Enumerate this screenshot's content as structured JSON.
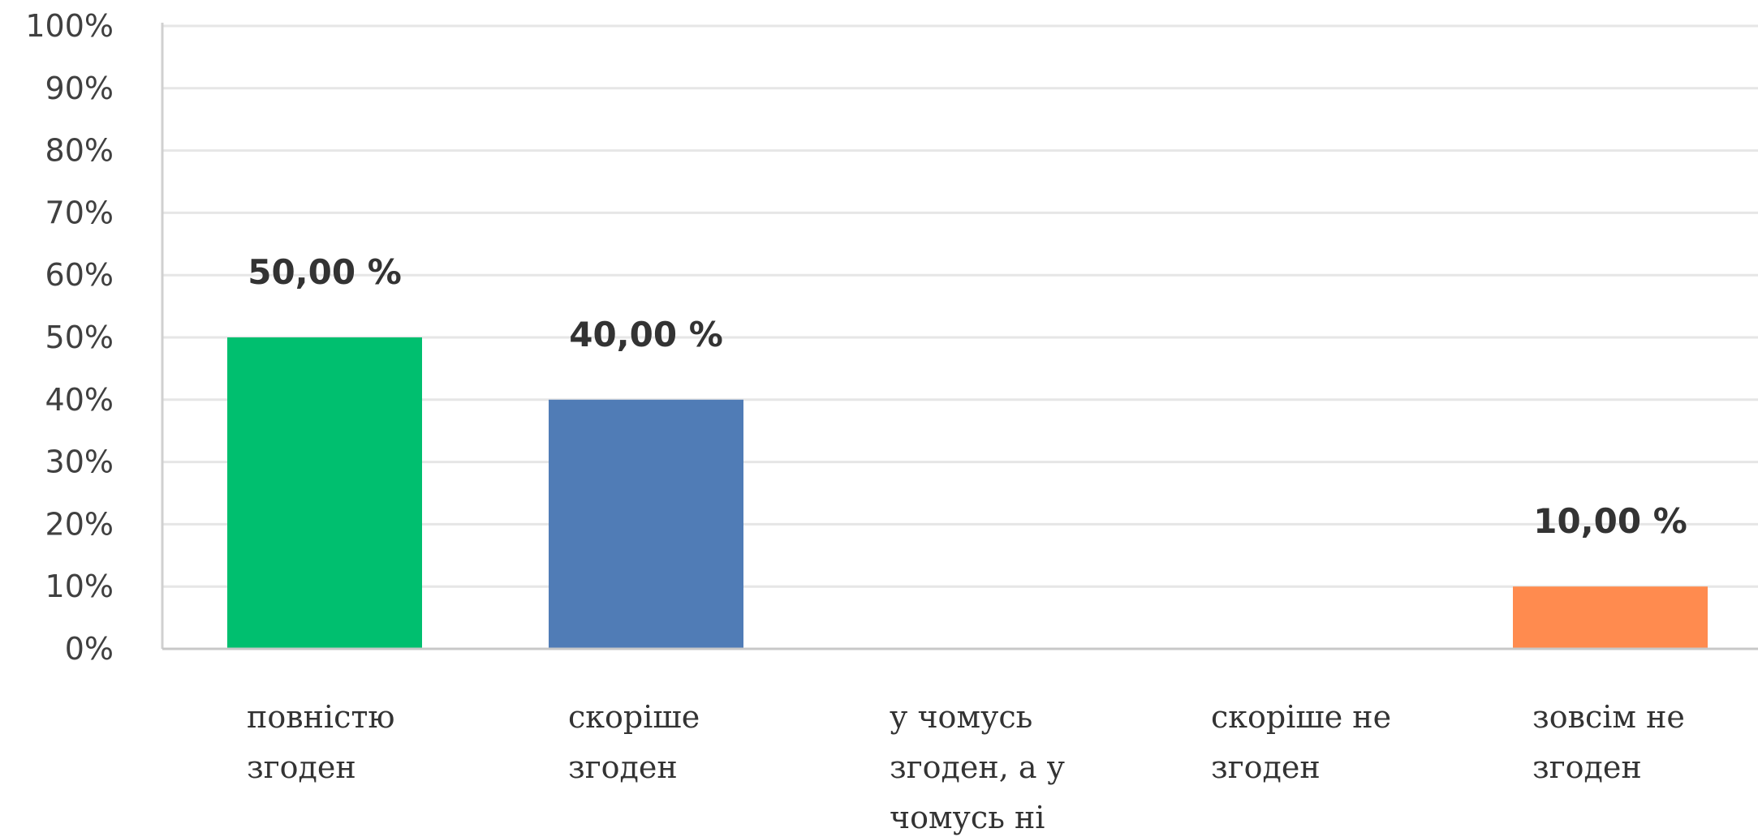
{
  "chart_data": {
    "type": "bar",
    "categories": [
      [
        "повністю",
        "згоден"
      ],
      [
        "скоріше",
        "згоден"
      ],
      [
        "у чомусь",
        "згоден, а у",
        "чомусь ні"
      ],
      [
        "скоріше не",
        "згоден"
      ],
      [
        "зовсім не",
        "згоден"
      ]
    ],
    "values": [
      50,
      40,
      0,
      0,
      10
    ],
    "data_labels": [
      "50,00 %",
      "40,00 %",
      "",
      "",
      "10,00 %"
    ],
    "colors": [
      "#00BF6F",
      "#507CB6",
      "#F9BE00",
      "#6BC8CD",
      "#FF8B4F"
    ],
    "ylim": [
      0,
      100
    ],
    "ytick_step": 10,
    "y_tick_format": "{v}%",
    "grid": true,
    "legend": "none",
    "title": "",
    "xlabel": "",
    "ylabel": ""
  }
}
